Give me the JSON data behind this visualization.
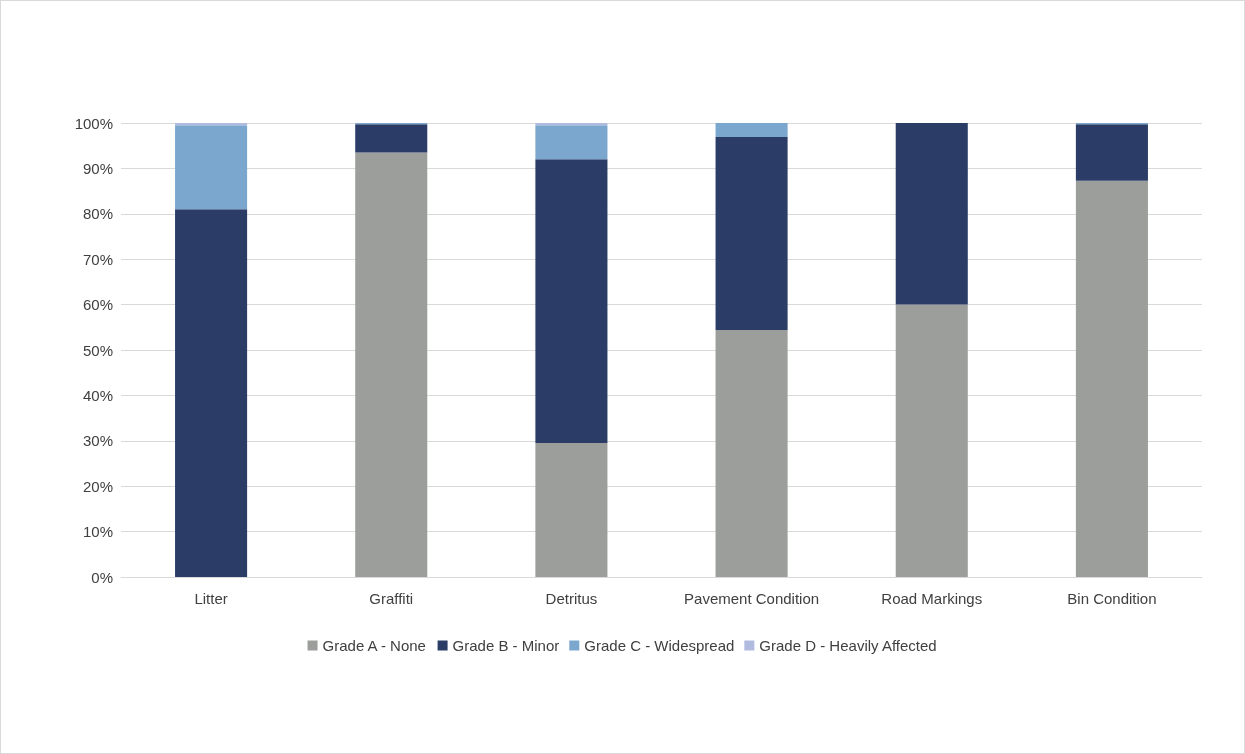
{
  "chart_data": {
    "type": "bar",
    "stacked": true,
    "categories": [
      "Litter",
      "Graffiti",
      "Detritus",
      "Pavement Condition",
      "Road Markings",
      "Bin Condition"
    ],
    "series": [
      {
        "name": "Grade A - None",
        "color": "#9c9e9b",
        "values": [
          null,
          93.5,
          29.5,
          54.4,
          60,
          87.3
        ]
      },
      {
        "name": "Grade B - Minor",
        "color": "#2b3d66",
        "values": [
          81,
          6.2,
          62.5,
          42.5,
          40,
          12.4
        ]
      },
      {
        "name": "Grade C - Widespread",
        "color": "#7ba7cf",
        "values": [
          18.5,
          0.3,
          7.5,
          3.1,
          null,
          0.3
        ]
      },
      {
        "name": "Grade D - Heavily Affected",
        "color": "#b0bbdf",
        "values": [
          0.5,
          null,
          0.5,
          null,
          null,
          null
        ]
      }
    ],
    "ylim": [
      0,
      100
    ],
    "yticks": [
      {
        "value": 0,
        "label": "0%"
      },
      {
        "value": 10,
        "label": "10%"
      },
      {
        "value": 20,
        "label": "20%"
      },
      {
        "value": 30,
        "label": "30%"
      },
      {
        "value": 40,
        "label": "40%"
      },
      {
        "value": 50,
        "label": "50%"
      },
      {
        "value": 60,
        "label": "60%"
      },
      {
        "value": 70,
        "label": "70%"
      },
      {
        "value": 80,
        "label": "80%"
      },
      {
        "value": 90,
        "label": "90%"
      },
      {
        "value": 100,
        "label": "100%"
      }
    ],
    "grid": "y",
    "legend": "bottom"
  }
}
